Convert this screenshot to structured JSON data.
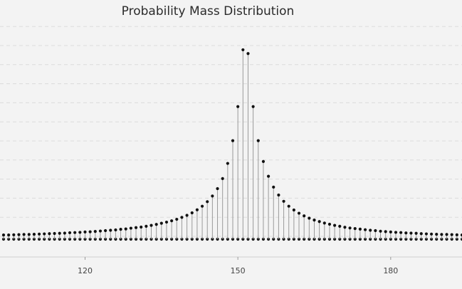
{
  "chart_data": {
    "type": "scatter",
    "title": "Probability Mass Distribution",
    "xlabel": "",
    "ylabel": "",
    "xlim": [
      104,
      194
    ],
    "ylim": [
      0,
      0.112
    ],
    "x_ticks": [
      "120",
      "150",
      "180"
    ],
    "grid": true,
    "series": [
      {
        "x": [
          104,
          105,
          106,
          107,
          108,
          109,
          110,
          111,
          112,
          113,
          114,
          115,
          116,
          117,
          118,
          119,
          120,
          121,
          122,
          123,
          124,
          125,
          126,
          127,
          128,
          129,
          130,
          131,
          132,
          133,
          134,
          135,
          136,
          137,
          138,
          139,
          140,
          141,
          142,
          143,
          144,
          145,
          146,
          147,
          148,
          149,
          150,
          151,
          152,
          153,
          154,
          155,
          156,
          157,
          158,
          159,
          160,
          161,
          162,
          163,
          164,
          165,
          166,
          167,
          168,
          169,
          170,
          171,
          172,
          173,
          174,
          175,
          176,
          177,
          178,
          179,
          180,
          181,
          182,
          183,
          184,
          185,
          186,
          187,
          188,
          189,
          190,
          191,
          192,
          193,
          194
        ],
        "values": [
          0.0022,
          0.0022,
          0.0023,
          0.0024,
          0.0025,
          0.0025,
          0.0026,
          0.0027,
          0.0028,
          0.0029,
          0.003,
          0.0031,
          0.0032,
          0.0034,
          0.0035,
          0.0036,
          0.0038,
          0.0039,
          0.0041,
          0.0043,
          0.0045,
          0.0047,
          0.0049,
          0.0052,
          0.0054,
          0.0058,
          0.0061,
          0.0064,
          0.0068,
          0.0073,
          0.0078,
          0.0084,
          0.009,
          0.0097,
          0.0105,
          0.0115,
          0.0126,
          0.0139,
          0.0155,
          0.0174,
          0.0198,
          0.0228,
          0.0267,
          0.032,
          0.04,
          0.052,
          0.07,
          0.1,
          0.098,
          0.07,
          0.052,
          0.041,
          0.0332,
          0.0275,
          0.0233,
          0.02,
          0.0174,
          0.0154,
          0.0137,
          0.0123,
          0.0111,
          0.0101,
          0.0093,
          0.0085,
          0.0079,
          0.0073,
          0.0068,
          0.0063,
          0.0059,
          0.0056,
          0.0053,
          0.005,
          0.0047,
          0.0045,
          0.0042,
          0.004,
          0.0038,
          0.0036,
          0.0035,
          0.0033,
          0.0032,
          0.0031,
          0.0029,
          0.0028,
          0.0027,
          0.0026,
          0.0025,
          0.0025,
          0.0024,
          0.0023,
          0.0022
        ]
      }
    ]
  }
}
